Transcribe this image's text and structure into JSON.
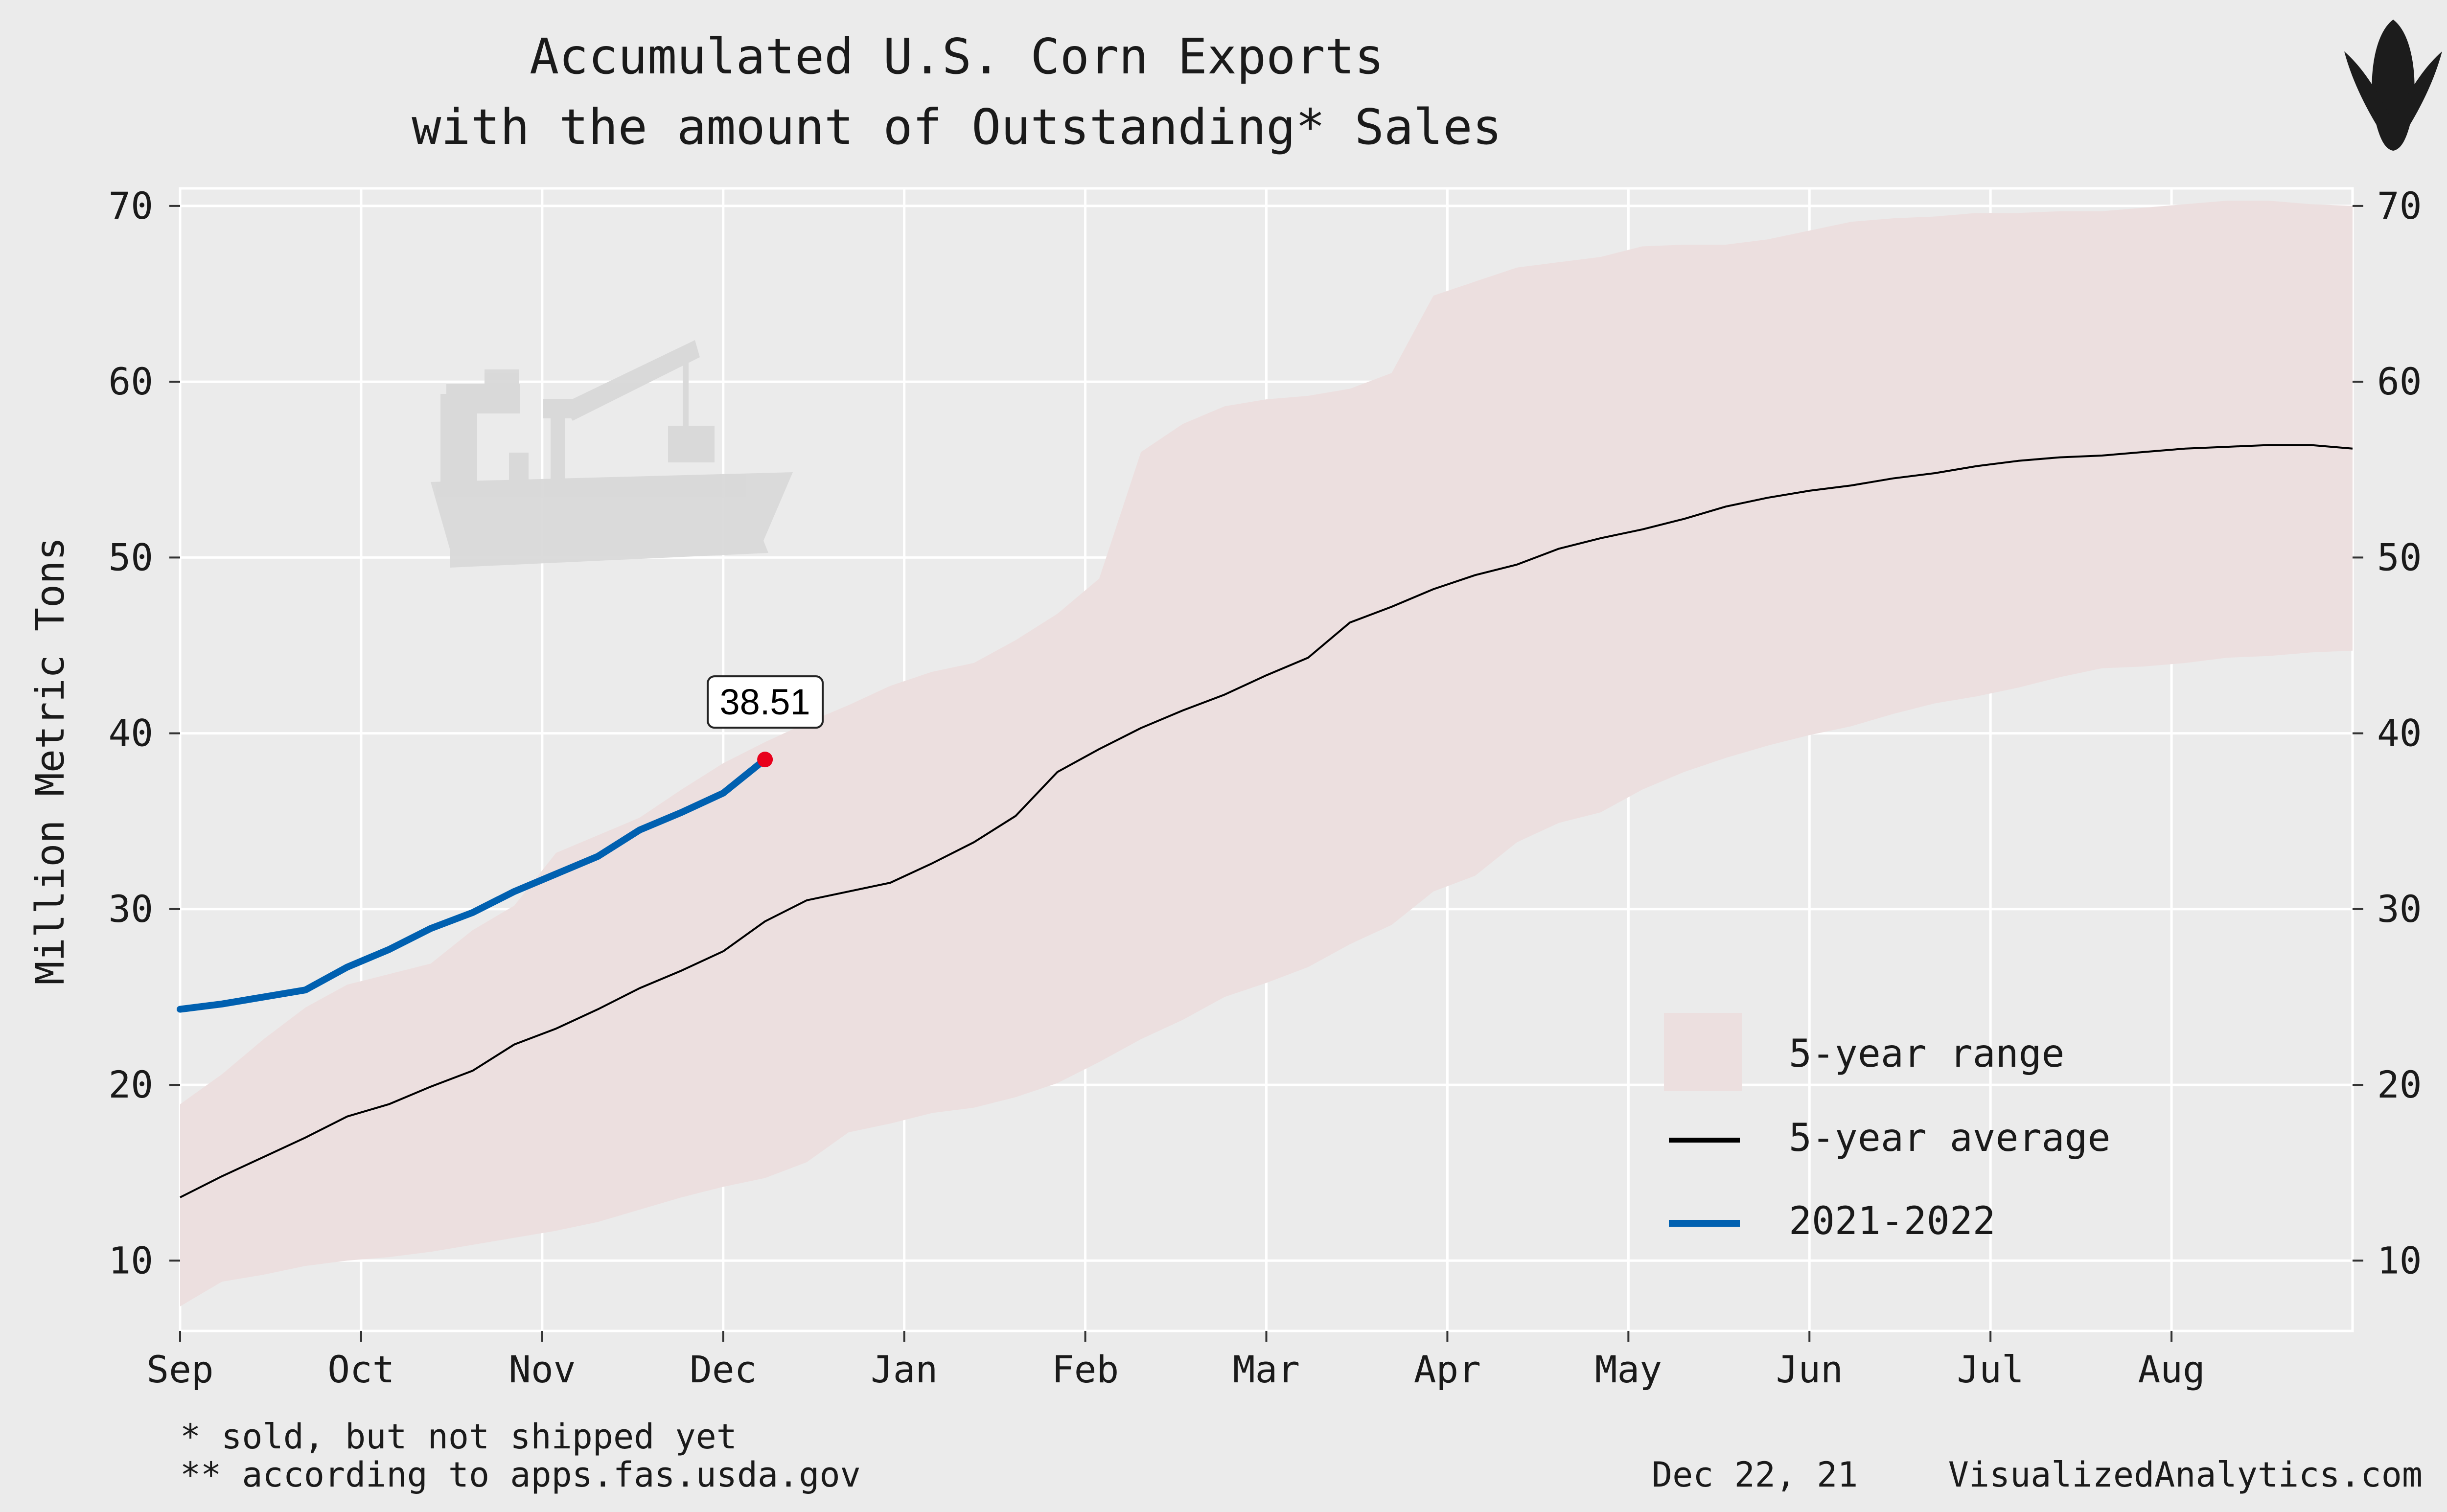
{
  "chart_data": {
    "type": "line",
    "title_line1": "Accumulated U.S. Corn Exports",
    "title_line2": "with the amount of Outstanding* Sales",
    "ylabel": "Million Metric Tons",
    "xlabel": "",
    "ylim": [
      6,
      71
    ],
    "y_ticks": [
      10,
      20,
      30,
      40,
      50,
      60,
      70
    ],
    "x_month_labels": [
      "Sep",
      "Oct",
      "Nov",
      "Dec",
      "Jan",
      "Feb",
      "Mar",
      "Apr",
      "May",
      "Jun",
      "Jul",
      "Aug"
    ],
    "x_domain_weeks": [
      0,
      52
    ],
    "grid": true,
    "legend_position": "bottom-right",
    "range_band": {
      "name": "5-year range",
      "color": "#ecdfdf",
      "x": [
        0,
        1,
        2,
        3,
        4,
        5,
        6,
        7,
        8,
        9,
        10,
        11,
        12,
        13,
        14,
        15,
        16,
        17,
        18,
        19,
        20,
        21,
        22,
        23,
        24,
        25,
        26,
        27,
        28,
        29,
        30,
        31,
        32,
        33,
        34,
        35,
        36,
        37,
        38,
        39,
        40,
        41,
        42,
        43,
        44,
        45,
        46,
        47,
        48,
        49,
        50,
        51,
        52
      ],
      "upper": [
        18.9,
        20.6,
        22.6,
        24.4,
        25.7,
        26.3,
        26.9,
        28.8,
        30.2,
        33.2,
        34.2,
        35.2,
        36.8,
        38.3,
        39.5,
        40.6,
        41.6,
        42.7,
        43.5,
        44.0,
        45.3,
        46.8,
        48.8,
        56.0,
        57.6,
        58.6,
        59.0,
        59.2,
        59.6,
        60.5,
        64.9,
        65.7,
        66.5,
        66.8,
        67.1,
        67.7,
        67.8,
        67.8,
        68.1,
        68.6,
        69.1,
        69.3,
        69.4,
        69.6,
        69.6,
        69.7,
        69.7,
        69.9,
        70.1,
        70.3,
        70.3,
        70.1,
        70.0
      ],
      "lower": [
        7.4,
        8.8,
        9.2,
        9.7,
        10.0,
        10.2,
        10.5,
        10.9,
        11.3,
        11.7,
        12.2,
        12.9,
        13.6,
        14.2,
        14.7,
        15.6,
        17.3,
        17.8,
        18.4,
        18.7,
        19.3,
        20.1,
        21.3,
        22.6,
        23.7,
        25.0,
        25.8,
        26.7,
        28.0,
        29.1,
        31.0,
        31.9,
        33.8,
        34.9,
        35.5,
        36.8,
        37.8,
        38.6,
        39.3,
        39.9,
        40.4,
        41.1,
        41.7,
        42.1,
        42.6,
        43.2,
        43.7,
        43.8,
        44.0,
        44.3,
        44.4,
        44.6,
        44.7
      ]
    },
    "series": [
      {
        "name": "5-year average",
        "color": "#000000",
        "x": [
          0,
          1,
          2,
          3,
          4,
          5,
          6,
          7,
          8,
          9,
          10,
          11,
          12,
          13,
          14,
          15,
          16,
          17,
          18,
          19,
          20,
          21,
          22,
          23,
          24,
          25,
          26,
          27,
          28,
          29,
          30,
          31,
          32,
          33,
          34,
          35,
          36,
          37,
          38,
          39,
          40,
          41,
          42,
          43,
          44,
          45,
          46,
          47,
          48,
          49,
          50,
          51,
          52
        ],
        "values": [
          13.6,
          14.8,
          15.9,
          17.0,
          18.2,
          18.9,
          19.9,
          20.8,
          22.3,
          23.2,
          24.3,
          25.5,
          26.5,
          27.6,
          29.3,
          30.5,
          31.0,
          31.5,
          32.6,
          33.8,
          35.3,
          37.8,
          39.1,
          40.3,
          41.3,
          42.2,
          43.3,
          44.3,
          46.3,
          47.2,
          48.2,
          49.0,
          49.6,
          50.5,
          51.1,
          51.6,
          52.2,
          52.9,
          53.4,
          53.8,
          54.1,
          54.5,
          54.8,
          55.2,
          55.5,
          55.7,
          55.8,
          56.0,
          56.2,
          56.3,
          56.4,
          56.4,
          56.2
        ]
      },
      {
        "name": "2021-2022",
        "color": "#0060b0",
        "x": [
          0,
          1,
          2,
          3,
          4,
          5,
          6,
          7,
          8,
          9,
          10,
          11,
          12,
          13,
          14
        ],
        "values": [
          24.3,
          24.6,
          25.0,
          25.4,
          26.7,
          27.7,
          28.9,
          29.8,
          31.0,
          32.0,
          33.0,
          34.5,
          35.5,
          36.6,
          38.51
        ]
      }
    ],
    "callout": {
      "label": "38.51",
      "x": 14,
      "y": 38.51,
      "marker_color": "#e8001c"
    }
  },
  "legend": {
    "items": [
      {
        "label": "5-year range",
        "kind": "band",
        "color": "#ecdfdf"
      },
      {
        "label": "5-year average",
        "kind": "line",
        "color": "#000000"
      },
      {
        "label": "2021-2022",
        "kind": "line",
        "color": "#0060b0"
      }
    ]
  },
  "footnotes": {
    "line1": "* sold, but not shipped yet",
    "line2": "** according to apps.fas.usda.gov"
  },
  "credit": {
    "date": "Dec 22, 21",
    "site": "VisualizedAnalytics.com"
  },
  "icons": {
    "watermark": "cargo-ship-icon",
    "logo": "corn-cob-icon"
  }
}
